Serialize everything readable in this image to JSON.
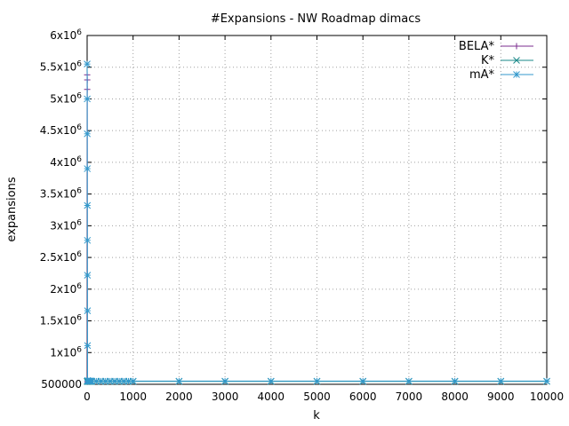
{
  "chart_data": {
    "type": "line",
    "title": "#Expansions - NW Roadmap dimacs",
    "xlabel": "k",
    "ylabel": "expansions",
    "xlim": [
      0,
      10000
    ],
    "ylim": [
      500000,
      6000000
    ],
    "grid": true,
    "legend_position": "top-right",
    "x_ticks": [
      0,
      1000,
      2000,
      3000,
      4000,
      5000,
      6000,
      7000,
      8000,
      9000,
      10000
    ],
    "x_tick_labels": [
      "0",
      "1000",
      "2000",
      "3000",
      "4000",
      "5000",
      "6000",
      "7000",
      "8000",
      "9000",
      "10000"
    ],
    "y_ticks": [
      500000,
      1000000,
      1500000,
      2000000,
      2500000,
      3000000,
      3500000,
      4000000,
      4500000,
      5000000,
      5500000,
      6000000
    ],
    "y_tick_labels": [
      {
        "base": "500000",
        "exp": ""
      },
      {
        "base": "1x10",
        "exp": "6"
      },
      {
        "base": "1.5x10",
        "exp": "6"
      },
      {
        "base": "2x10",
        "exp": "6"
      },
      {
        "base": "2.5x10",
        "exp": "6"
      },
      {
        "base": "3x10",
        "exp": "6"
      },
      {
        "base": "3.5x10",
        "exp": "6"
      },
      {
        "base": "4x10",
        "exp": "6"
      },
      {
        "base": "4.5x10",
        "exp": "6"
      },
      {
        "base": "5x10",
        "exp": "6"
      },
      {
        "base": "5.5x10",
        "exp": "6"
      },
      {
        "base": "6x10",
        "exp": "6"
      }
    ],
    "series": [
      {
        "name": "BELA*",
        "color": "#7b2c8f",
        "marker": "plus",
        "x": [
          1,
          2,
          3,
          5
        ],
        "y": [
          5380000,
          5150000,
          5300000,
          540000
        ]
      },
      {
        "name": "K*",
        "color": "#1a8a8a",
        "marker": "x",
        "x": [
          1,
          2,
          5,
          10,
          20,
          30,
          40,
          50,
          60,
          70,
          80,
          90,
          100,
          200,
          300,
          400,
          500,
          600,
          700,
          800,
          900,
          1000,
          2000,
          3000,
          4000,
          5000,
          6000,
          7000,
          8000,
          9000,
          10000
        ],
        "y": [
          545000,
          545000,
          545000,
          545000,
          545000,
          545000,
          545000,
          545000,
          545000,
          545000,
          545000,
          545000,
          545000,
          545000,
          545000,
          545000,
          545000,
          545000,
          545000,
          545000,
          545000,
          545000,
          545000,
          545000,
          545000,
          545000,
          545000,
          545000,
          545000,
          545000,
          545000
        ]
      },
      {
        "name": "mA*",
        "color": "#3399cc",
        "marker": "star",
        "x": [
          1,
          2,
          3,
          4,
          5,
          6,
          7,
          8,
          9,
          10,
          20,
          30,
          40,
          50,
          60,
          70,
          80,
          90,
          100,
          200,
          300,
          400,
          500,
          600,
          700,
          800,
          900,
          1000,
          2000,
          3000,
          4000,
          5000,
          6000,
          7000,
          8000,
          9000,
          10000
        ],
        "y": [
          5550000,
          5000000,
          4450000,
          3900000,
          3320000,
          2770000,
          2220000,
          1660000,
          1110000,
          560000,
          550000,
          550000,
          550000,
          550000,
          550000,
          550000,
          550000,
          550000,
          550000,
          550000,
          550000,
          550000,
          550000,
          550000,
          550000,
          550000,
          550000,
          550000,
          550000,
          550000,
          550000,
          550000,
          550000,
          550000,
          550000,
          550000,
          550000
        ]
      }
    ]
  }
}
